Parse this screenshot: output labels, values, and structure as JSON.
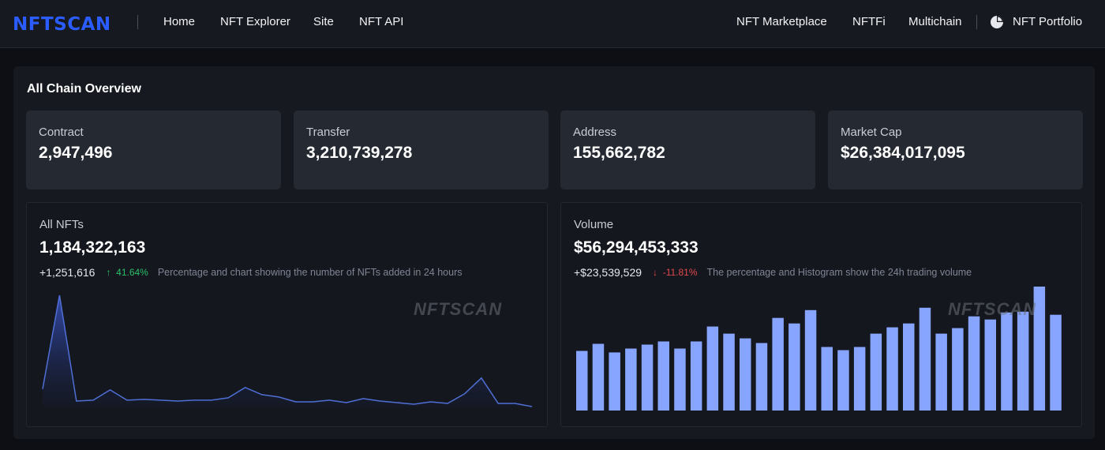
{
  "header": {
    "logo_text": "NFTSCAN",
    "nav_left": [
      "Home",
      "NFT Explorer",
      "Site",
      "NFT API"
    ],
    "nav_right": [
      "NFT Marketplace",
      "NFTFi",
      "Multichain"
    ],
    "portfolio_label": "NFT Portfolio",
    "portfolio_icon": "pie-chart-icon"
  },
  "overview": {
    "title": "All Chain Overview",
    "stats": [
      {
        "label": "Contract",
        "value": "2,947,496"
      },
      {
        "label": "Transfer",
        "value": "3,210,739,278"
      },
      {
        "label": "Address",
        "value": "155,662,782"
      },
      {
        "label": "Market Cap",
        "value": "$26,384,017,095"
      }
    ]
  },
  "nfts_card": {
    "label": "All NFTs",
    "value": "1,184,322,163",
    "change": "+1,251,616",
    "delta_arrow": "↑",
    "delta": "41.64%",
    "description": "Percentage and chart showing the number of NFTs added in 24 hours",
    "watermark": "NFTSCAN"
  },
  "volume_card": {
    "label": "Volume",
    "value": "$56,294,453,333",
    "change": "+$23,539,529",
    "delta_arrow": "↓",
    "delta": "-11.81%",
    "description": "The percentage and Histogram show the 24h trading volume",
    "watermark": "NFTSCAN"
  },
  "colors": {
    "accent_blue": "#2a5cff",
    "line": "#4f6fd6",
    "bar": "#87a5ff",
    "up": "#2bbf6b",
    "down": "#e5484d"
  },
  "chart_data": [
    {
      "type": "area",
      "series": [
        {
          "values": [
            22,
            140,
            7,
            8,
            21,
            8,
            9,
            8,
            7,
            8,
            8,
            11,
            24,
            15,
            12,
            6,
            6,
            8,
            5,
            10,
            7,
            5,
            3,
            6,
            4,
            16,
            36,
            4,
            4,
            0
          ]
        }
      ],
      "ylim": [
        0,
        145
      ]
    },
    {
      "type": "bar",
      "series": [
        {
          "values": [
            76,
            85,
            74,
            79,
            84,
            88,
            79,
            88,
            107,
            98,
            92,
            86,
            118,
            111,
            128,
            81,
            77,
            81,
            98,
            106,
            111,
            131,
            98,
            105,
            120,
            116,
            125,
            126,
            158,
            122
          ]
        }
      ],
      "ylim": [
        0,
        165
      ]
    }
  ]
}
